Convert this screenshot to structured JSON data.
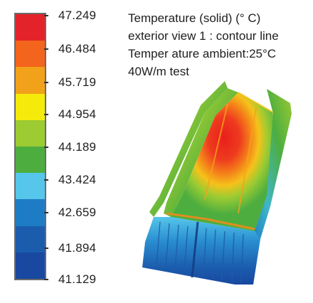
{
  "legend": {
    "bands": [
      "#e32229",
      "#f3641c",
      "#f2a21a",
      "#f5eb0a",
      "#9ccb32",
      "#4dae3f",
      "#56c6ea",
      "#1e7cc4",
      "#1b5cad",
      "#1848a0"
    ],
    "ticks": [
      "47.249",
      "46.484",
      "45.719",
      "44.954",
      "44.189",
      "43.424",
      "42.659",
      "41.894",
      "41.129"
    ]
  },
  "caption": {
    "line1": "Temperature (solid) (° C)",
    "line2": "exterior view 1 : contour line",
    "line3": "Temper ature ambient:25°C",
    "line4": "40W/m test"
  },
  "model": {
    "image": "heatsink-temperature-contour-render"
  }
}
